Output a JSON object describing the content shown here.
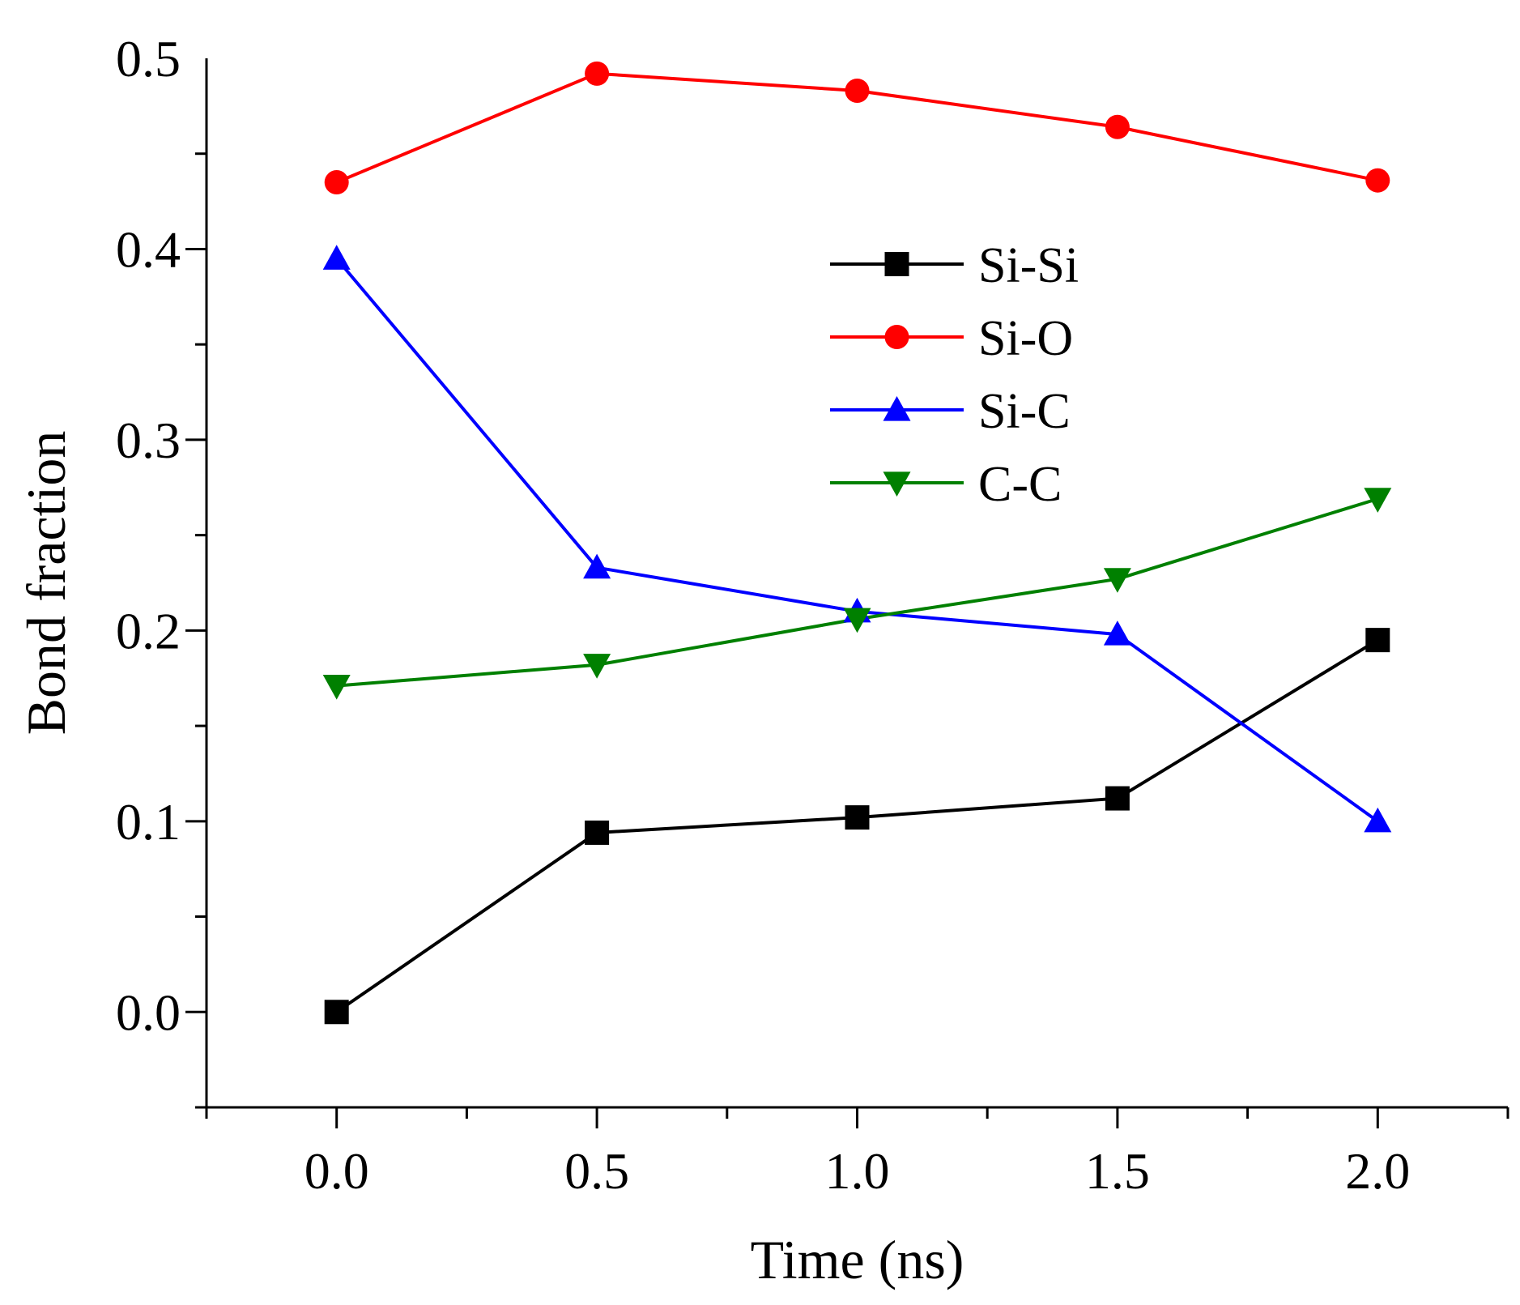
{
  "chart_data": {
    "type": "line",
    "title": "",
    "xlabel": "Time (ns)",
    "ylabel": "Bond fraction",
    "x": [
      0.0,
      0.5,
      1.0,
      1.5,
      2.0
    ],
    "xlim": [
      -0.25,
      2.25
    ],
    "ylim": [
      -0.05,
      0.5
    ],
    "x_ticks": [
      0.0,
      0.5,
      1.0,
      1.5,
      2.0
    ],
    "x_tick_labels": [
      "0.0",
      "0.5",
      "1.0",
      "1.5",
      "2.0"
    ],
    "y_ticks": [
      0.0,
      0.1,
      0.2,
      0.3,
      0.4,
      0.5
    ],
    "y_tick_labels": [
      "0.0",
      "0.1",
      "0.2",
      "0.3",
      "0.4",
      "0.5"
    ],
    "grid": false,
    "legend_position": "upper-middle-right",
    "series": [
      {
        "name": "Si-Si",
        "color": "#000000",
        "marker": "square",
        "values": [
          0.0,
          0.094,
          0.102,
          0.112,
          0.195
        ]
      },
      {
        "name": "Si-O",
        "color": "#ff0000",
        "marker": "circle",
        "values": [
          0.435,
          0.492,
          0.483,
          0.464,
          0.436
        ]
      },
      {
        "name": "Si-C",
        "color": "#0000ff",
        "marker": "triangle-up",
        "values": [
          0.395,
          0.233,
          0.21,
          0.198,
          0.1
        ]
      },
      {
        "name": "C-C",
        "color": "#008000",
        "marker": "triangle-down",
        "values": [
          0.171,
          0.182,
          0.206,
          0.227,
          0.269
        ]
      }
    ]
  }
}
